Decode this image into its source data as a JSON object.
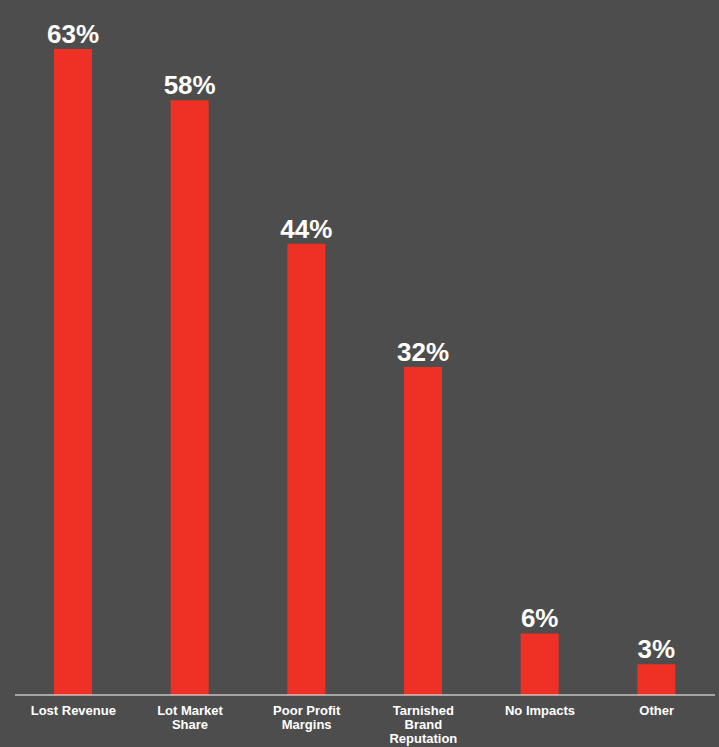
{
  "chart_data": {
    "type": "bar",
    "categories": [
      "Lost Revenue",
      "Lot Market Share",
      "Poor Profit Margins",
      "Tarnished Brand Reputation",
      "No Impacts",
      "Other"
    ],
    "values": [
      63,
      58,
      44,
      32,
      6,
      3
    ],
    "value_labels": [
      "63%",
      "58%",
      "44%",
      "32%",
      "6%",
      "3%"
    ],
    "color": "#ee3124",
    "ylim": [
      0,
      67
    ],
    "yticks": [],
    "data_labels": true,
    "tick_labels": "x",
    "grid": false
  }
}
